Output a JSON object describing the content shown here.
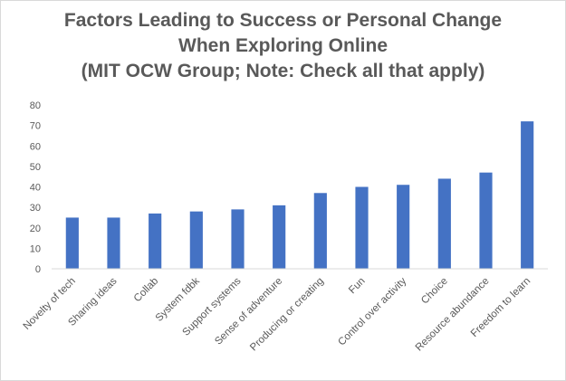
{
  "chart_data": {
    "type": "bar",
    "title": [
      "Factors Leading to Success or Personal Change",
      "When Exploring Online",
      "(MIT OCW Group; Note: Check all that apply)"
    ],
    "categories": [
      "Novelty of tech",
      "Sharing ideas",
      "Collab",
      "System fdbk",
      "Support systems",
      "Sense of adventure",
      "Producing or creating",
      "Fun",
      "Control over activity",
      "Choice",
      "Resource abundance",
      "Freedom to learn"
    ],
    "values": [
      25,
      25,
      27,
      28,
      29,
      31,
      37,
      40,
      41,
      44,
      47,
      72
    ],
    "yticks": [
      "0",
      "10",
      "20",
      "30",
      "40",
      "50",
      "60",
      "70",
      "80"
    ],
    "ylim": [
      0,
      80
    ],
    "grid": false,
    "legend": "none",
    "colors": {
      "bar": "#4472c4",
      "axis": "#d9d9d9",
      "text": "#595959"
    }
  }
}
